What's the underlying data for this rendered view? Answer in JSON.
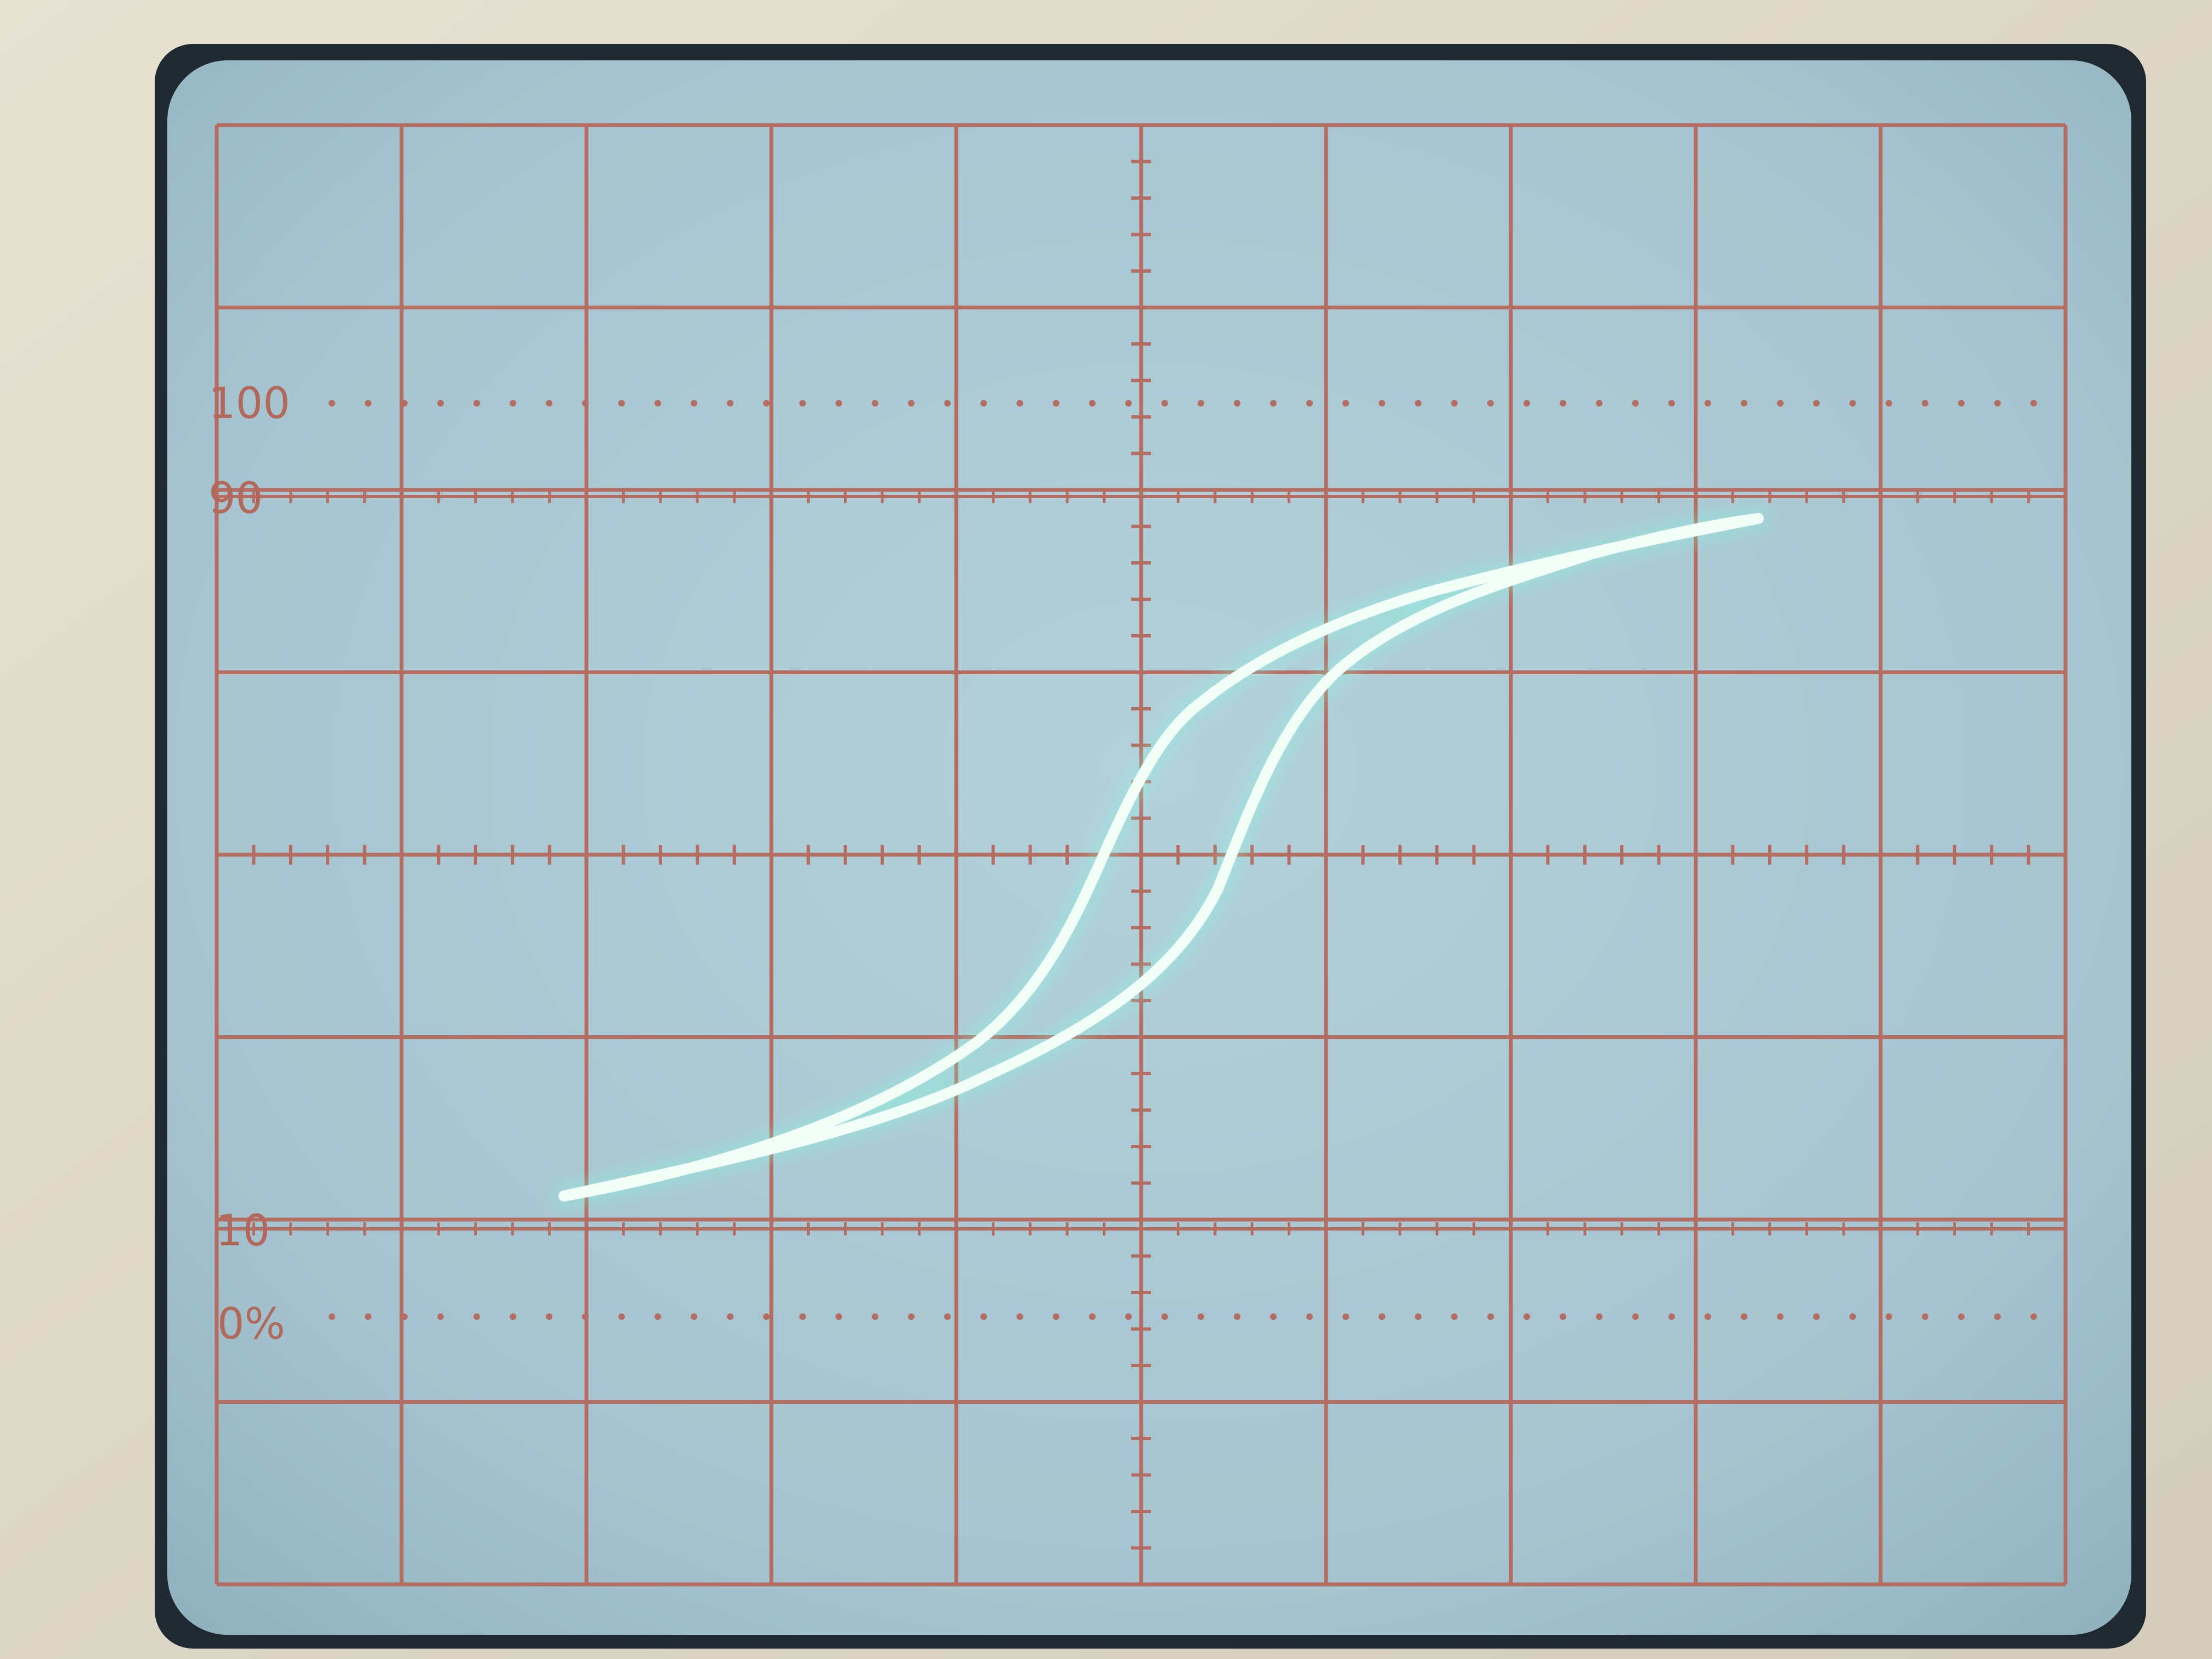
{
  "photo": {
    "subject": "oscilloscope-screen",
    "colors": {
      "bezel": "#e2dccd",
      "screen_frame": "#202a30",
      "screen": "#a8c7d2",
      "graticule": "#b56d62",
      "trace": "#f2fff8",
      "trace_glow": "#7fffe0"
    }
  },
  "graticule": {
    "scale_labels": {
      "p100": "100",
      "p90": "90",
      "p10": "10",
      "p0": "0%"
    }
  }
}
